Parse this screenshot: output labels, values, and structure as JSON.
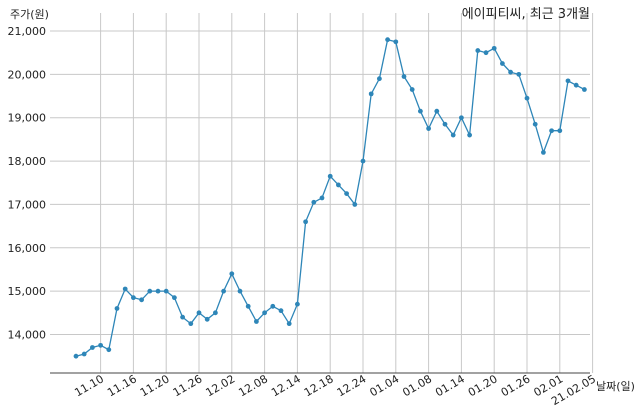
{
  "chart_data": {
    "type": "line",
    "title": "에이피티씨, 최근 3개월",
    "ylabel": "주가(원)",
    "xlabel": "날짜(일)",
    "ylim": [
      13200,
      21000
    ],
    "yticks": [
      14000,
      15000,
      16000,
      17000,
      18000,
      19000,
      20000,
      21000
    ],
    "ytick_labels": [
      "14,000",
      "15,000",
      "16,000",
      "17,000",
      "18,000",
      "19,000",
      "20,000",
      "21,000"
    ],
    "xtick_labels": [
      "11.10",
      "11.16",
      "11.20",
      "11.26",
      "12.02",
      "12.08",
      "12.14",
      "12.18",
      "12.24",
      "01.04",
      "01.08",
      "01.14",
      "01.20",
      "01.26",
      "02.01",
      "21.02.05"
    ],
    "xtick_index": [
      3,
      7,
      11,
      15,
      19,
      23,
      27,
      31,
      35,
      39,
      43,
      47,
      51,
      55,
      59,
      63
    ],
    "grid": true,
    "line_color": "#2e86b8",
    "series": [
      {
        "values": [
          13500,
          13550,
          13700,
          13750,
          13650,
          14600,
          15050,
          14850,
          14800,
          15000,
          15000,
          15000,
          14850,
          14400,
          14250,
          14500,
          14350,
          14500,
          15000,
          15400,
          15000,
          14650,
          14300,
          14500,
          14650,
          14550,
          14250,
          14700,
          16600,
          17050,
          17150,
          17650,
          17450,
          17250,
          17000,
          18000,
          19550,
          19900,
          20800,
          20750,
          19950,
          19650,
          19150,
          18750,
          19150,
          18850,
          18600,
          19000,
          18600,
          20550,
          20500,
          20600,
          20250,
          20050,
          20000,
          19450,
          18850,
          18200,
          18700,
          18700,
          19850,
          19750,
          19650
        ]
      }
    ]
  }
}
